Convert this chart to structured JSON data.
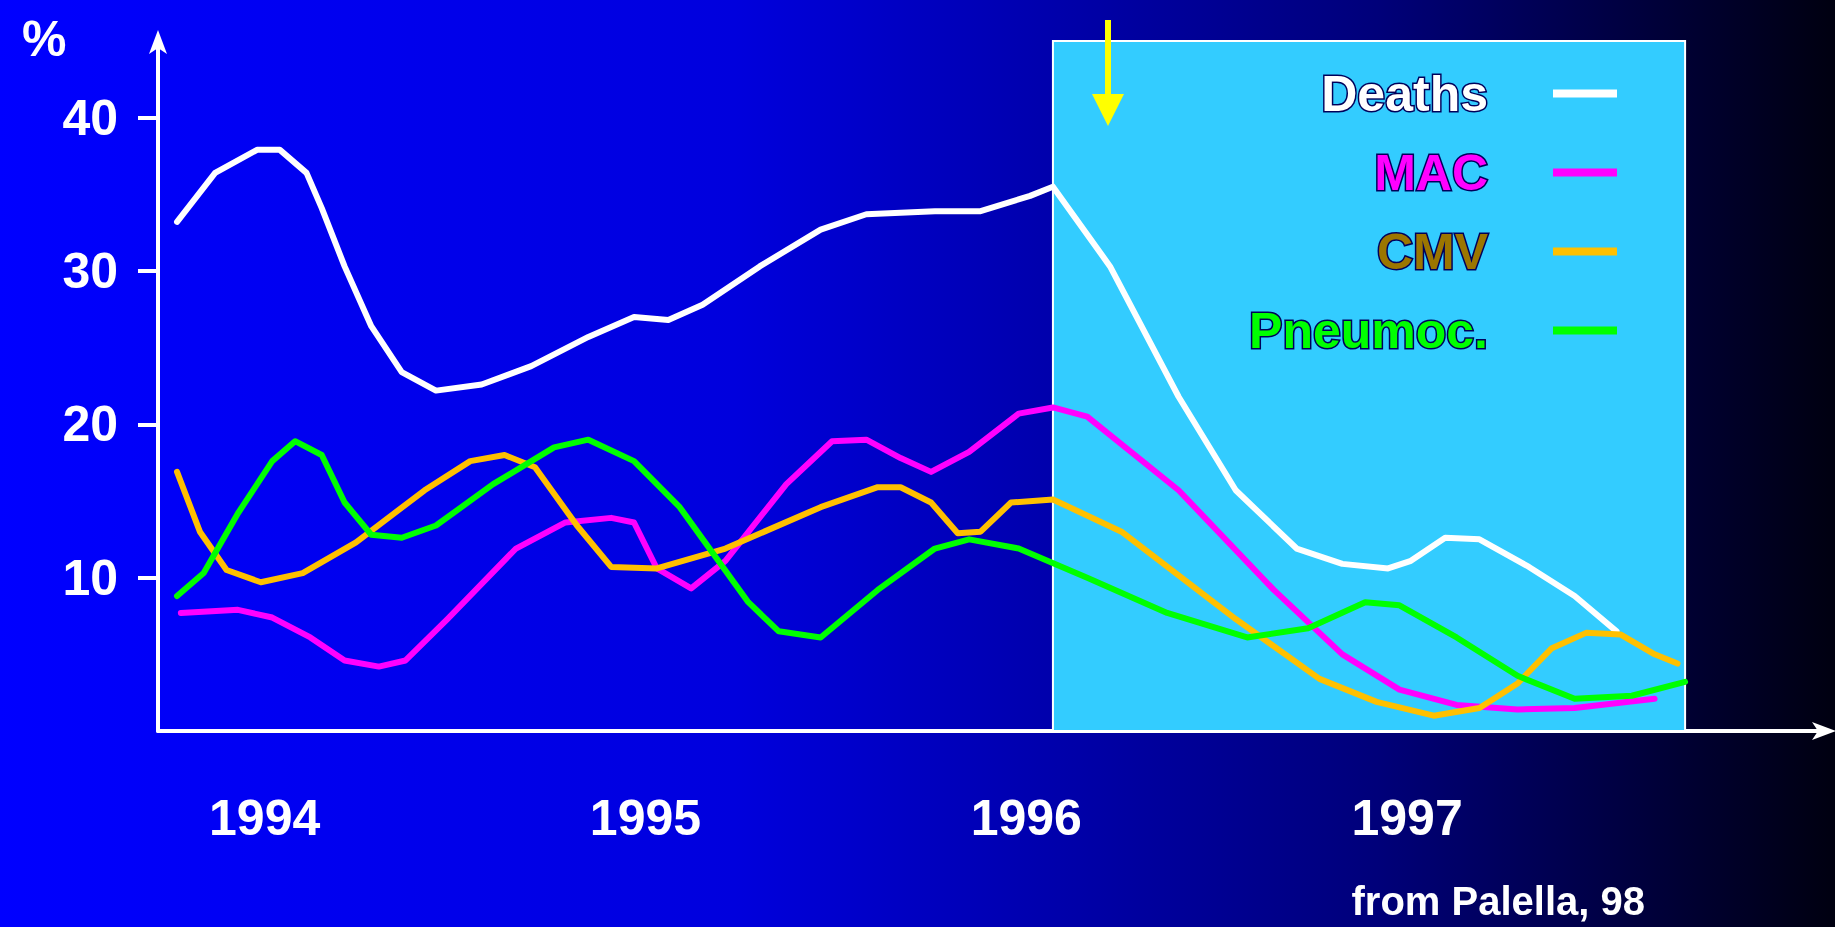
{
  "chart_data": {
    "type": "line",
    "ylabel": "%",
    "annotations": [
      "from Palella, 98"
    ],
    "xlim": [
      1993.72,
      1998.1
    ],
    "xticks": [
      {
        "value": 1994,
        "label": "1994"
      },
      {
        "value": 1995,
        "label": "1995"
      },
      {
        "value": 1996,
        "label": "1996"
      },
      {
        "value": 1997,
        "label": "1997"
      }
    ],
    "ylim": [
      0,
      45
    ],
    "yticks": [
      10,
      20,
      30,
      40
    ],
    "grid": false,
    "legend": "top right",
    "marker": "none",
    "line_style": "solid",
    "bands": [
      {
        "axis": "x",
        "from": 1996.07,
        "to": 1997.73,
        "color": "#33ccff"
      }
    ],
    "series": [
      {
        "name": "Deaths",
        "color": "#ffffff",
        "x": [
          1993.77,
          1993.87,
          1993.98,
          1994.04,
          1994.11,
          1994.15,
          1994.21,
          1994.28,
          1994.36,
          1994.45,
          1994.57,
          1994.7,
          1994.85,
          1994.97,
          1995.06,
          1995.15,
          1995.3,
          1995.46,
          1995.58,
          1995.76,
          1995.88,
          1996.01,
          1996.07,
          1996.22,
          1996.4,
          1996.55,
          1996.71,
          1996.83,
          1996.95,
          1997.01,
          1997.1,
          1997.19,
          1997.32,
          1997.44,
          1997.55
        ],
        "values": [
          33.2,
          36.4,
          37.9,
          37.9,
          36.4,
          34.1,
          30.3,
          26.4,
          23.4,
          22.2,
          22.6,
          23.8,
          25.7,
          27.0,
          26.8,
          27.8,
          30.3,
          32.7,
          33.7,
          33.9,
          33.9,
          34.9,
          35.5,
          30.3,
          21.8,
          15.7,
          11.9,
          10.9,
          10.6,
          11.1,
          12.6,
          12.5,
          10.7,
          8.8,
          6.5
        ]
      },
      {
        "name": "MAC",
        "color": "#ff00ff",
        "x": [
          1993.78,
          1993.93,
          1994.02,
          1994.12,
          1994.21,
          1994.3,
          1994.37,
          1994.48,
          1994.66,
          1994.79,
          1994.91,
          1994.97,
          1995.03,
          1995.12,
          1995.21,
          1995.37,
          1995.49,
          1995.58,
          1995.67,
          1995.75,
          1995.85,
          1995.98,
          1996.07,
          1996.16,
          1996.4,
          1996.65,
          1996.83,
          1996.98,
          1997.13,
          1997.29,
          1997.44,
          1997.65
        ],
        "values": [
          7.7,
          7.9,
          7.4,
          6.1,
          4.6,
          4.2,
          4.6,
          7.3,
          11.9,
          13.6,
          13.9,
          13.6,
          10.6,
          9.3,
          11.1,
          16.1,
          18.9,
          19.0,
          17.8,
          16.9,
          18.2,
          20.7,
          21.1,
          20.5,
          15.7,
          9.2,
          5.0,
          2.7,
          1.7,
          1.4,
          1.5,
          2.1
        ]
      },
      {
        "name": "CMV",
        "color": "#ffc000",
        "x": [
          1993.77,
          1993.83,
          1993.9,
          1993.99,
          1994.1,
          1994.24,
          1994.42,
          1994.54,
          1994.63,
          1994.71,
          1994.82,
          1994.91,
          1995.03,
          1995.21,
          1995.46,
          1995.61,
          1995.67,
          1995.75,
          1995.82,
          1995.88,
          1995.96,
          1996.07,
          1996.25,
          1996.55,
          1996.77,
          1996.92,
          1997.07,
          1997.19,
          1997.29,
          1997.38,
          1997.47,
          1997.56,
          1997.65,
          1997.71
        ],
        "values": [
          16.9,
          13.0,
          10.5,
          9.7,
          10.3,
          12.3,
          15.7,
          17.6,
          18.0,
          17.2,
          13.4,
          10.7,
          10.6,
          11.9,
          14.6,
          15.9,
          15.9,
          14.9,
          12.9,
          13.0,
          14.9,
          15.1,
          13.0,
          7.3,
          3.4,
          1.9,
          1.0,
          1.5,
          3.1,
          5.4,
          6.4,
          6.3,
          5.0,
          4.4
        ]
      },
      {
        "name": "Pneumoc.",
        "color": "#00ff00",
        "x": [
          1993.77,
          1993.84,
          1993.93,
          1994.02,
          1994.08,
          1994.15,
          1994.21,
          1994.28,
          1994.36,
          1994.45,
          1994.6,
          1994.76,
          1994.85,
          1994.97,
          1995.09,
          1995.18,
          1995.27,
          1995.35,
          1995.46,
          1995.61,
          1995.76,
          1995.85,
          1995.98,
          1996.16,
          1996.37,
          1996.58,
          1996.74,
          1996.89,
          1996.98,
          1997.13,
          1997.29,
          1997.44,
          1997.59,
          1997.73
        ],
        "values": [
          8.8,
          10.3,
          14.2,
          17.6,
          18.9,
          18.0,
          14.9,
          12.8,
          12.6,
          13.4,
          16.1,
          18.5,
          19.0,
          17.6,
          14.6,
          11.5,
          8.4,
          6.5,
          6.1,
          9.2,
          11.9,
          12.5,
          11.9,
          10.0,
          7.7,
          6.1,
          6.7,
          8.4,
          8.2,
          6.1,
          3.6,
          2.1,
          2.3,
          3.2
        ]
      }
    ]
  }
}
